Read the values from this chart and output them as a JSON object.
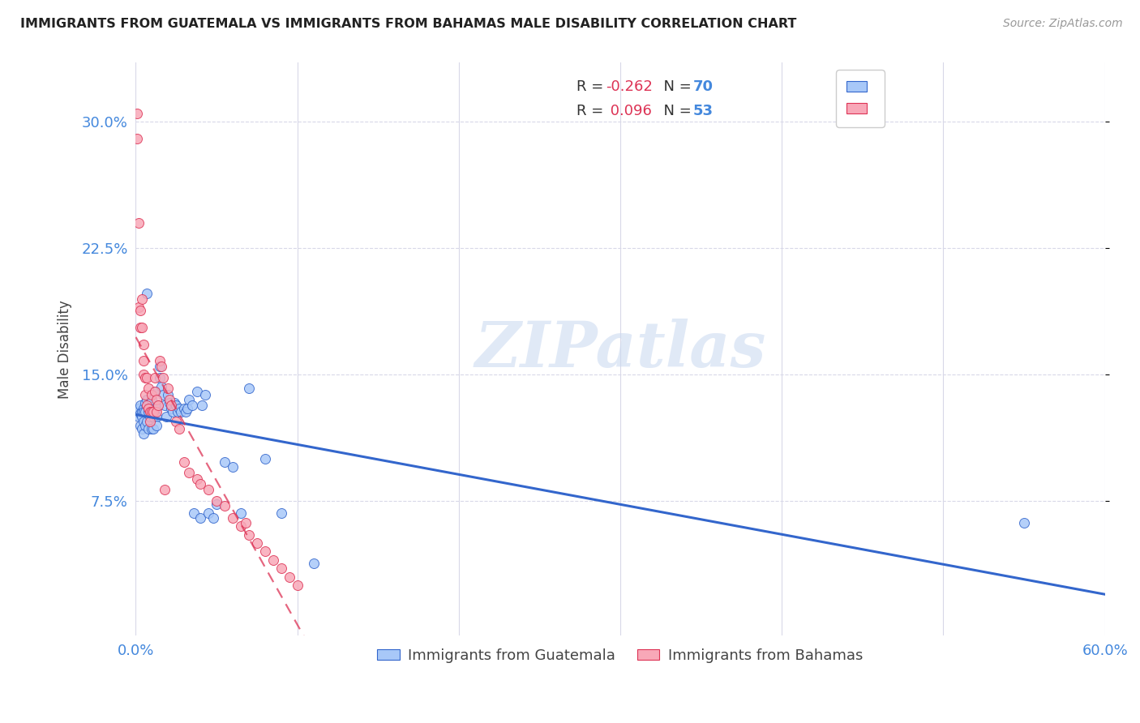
{
  "title": "IMMIGRANTS FROM GUATEMALA VS IMMIGRANTS FROM BAHAMAS MALE DISABILITY CORRELATION CHART",
  "source": "Source: ZipAtlas.com",
  "ylabel": "Male Disability",
  "ytick_labels": [
    "7.5%",
    "15.0%",
    "22.5%",
    "30.0%"
  ],
  "ytick_values": [
    0.075,
    0.15,
    0.225,
    0.3
  ],
  "xlim": [
    0.0,
    0.6
  ],
  "ylim": [
    -0.005,
    0.335
  ],
  "color_guatemala": "#a8c8f8",
  "color_bahamas": "#f8a8b8",
  "color_line_guatemala": "#3366cc",
  "color_line_bahamas": "#dd3355",
  "watermark": "ZIPatlas",
  "background_color": "#ffffff",
  "grid_color": "#d8d8e8",
  "scatter_guatemala_x": [
    0.001,
    0.002,
    0.002,
    0.003,
    0.003,
    0.003,
    0.004,
    0.004,
    0.004,
    0.005,
    0.005,
    0.005,
    0.005,
    0.006,
    0.006,
    0.006,
    0.007,
    0.007,
    0.007,
    0.008,
    0.008,
    0.008,
    0.009,
    0.009,
    0.01,
    0.01,
    0.01,
    0.011,
    0.011,
    0.012,
    0.012,
    0.013,
    0.013,
    0.014,
    0.015,
    0.015,
    0.016,
    0.017,
    0.018,
    0.019,
    0.02,
    0.021,
    0.022,
    0.023,
    0.024,
    0.025,
    0.026,
    0.027,
    0.028,
    0.03,
    0.031,
    0.032,
    0.033,
    0.035,
    0.036,
    0.038,
    0.04,
    0.041,
    0.043,
    0.045,
    0.048,
    0.05,
    0.055,
    0.06,
    0.065,
    0.07,
    0.08,
    0.09,
    0.11,
    0.55
  ],
  "scatter_guatemala_y": [
    0.128,
    0.13,
    0.125,
    0.132,
    0.127,
    0.12,
    0.128,
    0.125,
    0.118,
    0.13,
    0.128,
    0.122,
    0.115,
    0.133,
    0.128,
    0.12,
    0.198,
    0.135,
    0.122,
    0.13,
    0.128,
    0.118,
    0.13,
    0.125,
    0.135,
    0.128,
    0.118,
    0.125,
    0.118,
    0.14,
    0.128,
    0.125,
    0.12,
    0.132,
    0.155,
    0.148,
    0.143,
    0.138,
    0.132,
    0.125,
    0.138,
    0.133,
    0.13,
    0.128,
    0.133,
    0.132,
    0.128,
    0.13,
    0.128,
    0.13,
    0.128,
    0.13,
    0.135,
    0.132,
    0.068,
    0.14,
    0.065,
    0.132,
    0.138,
    0.068,
    0.065,
    0.073,
    0.098,
    0.095,
    0.068,
    0.142,
    0.1,
    0.068,
    0.038,
    0.062
  ],
  "scatter_bahamas_x": [
    0.001,
    0.001,
    0.002,
    0.002,
    0.003,
    0.003,
    0.004,
    0.004,
    0.005,
    0.005,
    0.005,
    0.006,
    0.006,
    0.007,
    0.007,
    0.008,
    0.008,
    0.009,
    0.009,
    0.01,
    0.01,
    0.011,
    0.012,
    0.012,
    0.013,
    0.013,
    0.014,
    0.015,
    0.016,
    0.017,
    0.018,
    0.02,
    0.021,
    0.022,
    0.025,
    0.027,
    0.03,
    0.033,
    0.038,
    0.04,
    0.045,
    0.05,
    0.055,
    0.06,
    0.065,
    0.068,
    0.07,
    0.075,
    0.08,
    0.085,
    0.09,
    0.095,
    0.1
  ],
  "scatter_bahamas_y": [
    0.305,
    0.29,
    0.24,
    0.19,
    0.188,
    0.178,
    0.195,
    0.178,
    0.168,
    0.158,
    0.15,
    0.148,
    0.138,
    0.148,
    0.132,
    0.142,
    0.13,
    0.128,
    0.122,
    0.138,
    0.128,
    0.128,
    0.148,
    0.14,
    0.135,
    0.128,
    0.132,
    0.158,
    0.155,
    0.148,
    0.082,
    0.142,
    0.135,
    0.132,
    0.122,
    0.118,
    0.098,
    0.092,
    0.088,
    0.085,
    0.082,
    0.075,
    0.072,
    0.065,
    0.06,
    0.062,
    0.055,
    0.05,
    0.045,
    0.04,
    0.035,
    0.03,
    0.025
  ],
  "reg_line_x_start": 0.0,
  "reg_line_x_end": 0.6
}
